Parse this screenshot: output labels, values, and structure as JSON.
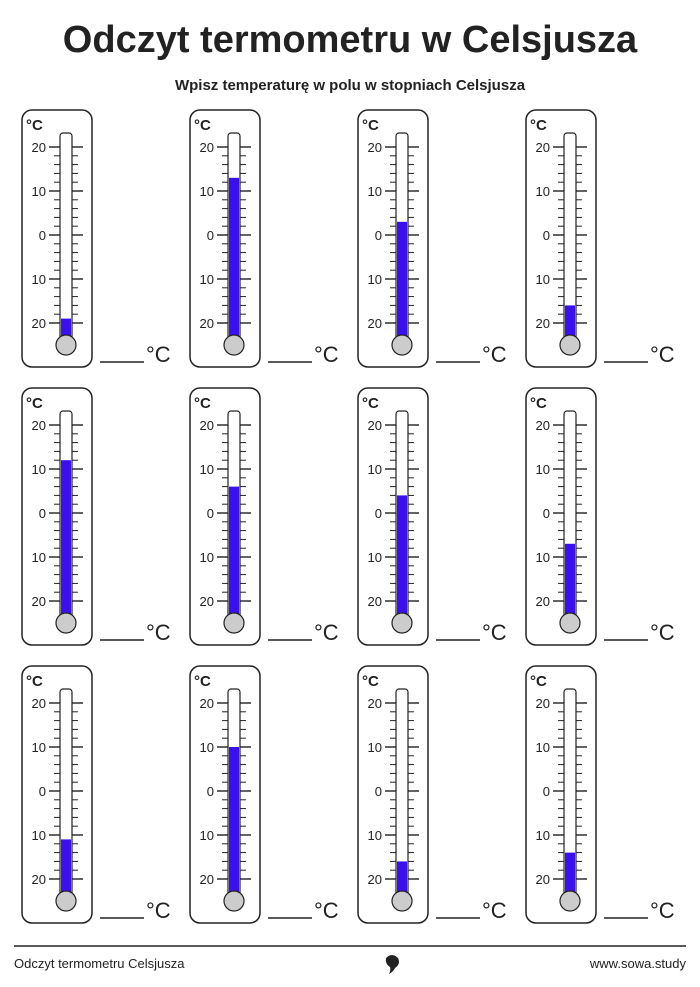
{
  "header": {
    "title": "Odczyt termometru w Celsjusza",
    "subtitle": "Wpisz temperaturę w polu w stopniach Celsjusza"
  },
  "unit": "°C",
  "scale": [
    {
      "value": 20,
      "label": "20"
    },
    {
      "value": 10,
      "label": "10"
    },
    0,
    {
      "value": -10,
      "label": "10"
    },
    {
      "value": -20,
      "label": "20"
    }
  ],
  "thermometers": [
    {
      "value": -19
    },
    {
      "value": 13
    },
    {
      "value": 3
    },
    {
      "value": -16
    },
    {
      "value": 12
    },
    {
      "value": 6
    },
    {
      "value": 4
    },
    {
      "value": -7
    },
    {
      "value": -11
    },
    {
      "value": 10
    },
    {
      "value": -16
    },
    {
      "value": -14
    }
  ],
  "footer": {
    "left": "Odczyt termometru Celsjusza",
    "right": "www.sowa.study"
  }
}
